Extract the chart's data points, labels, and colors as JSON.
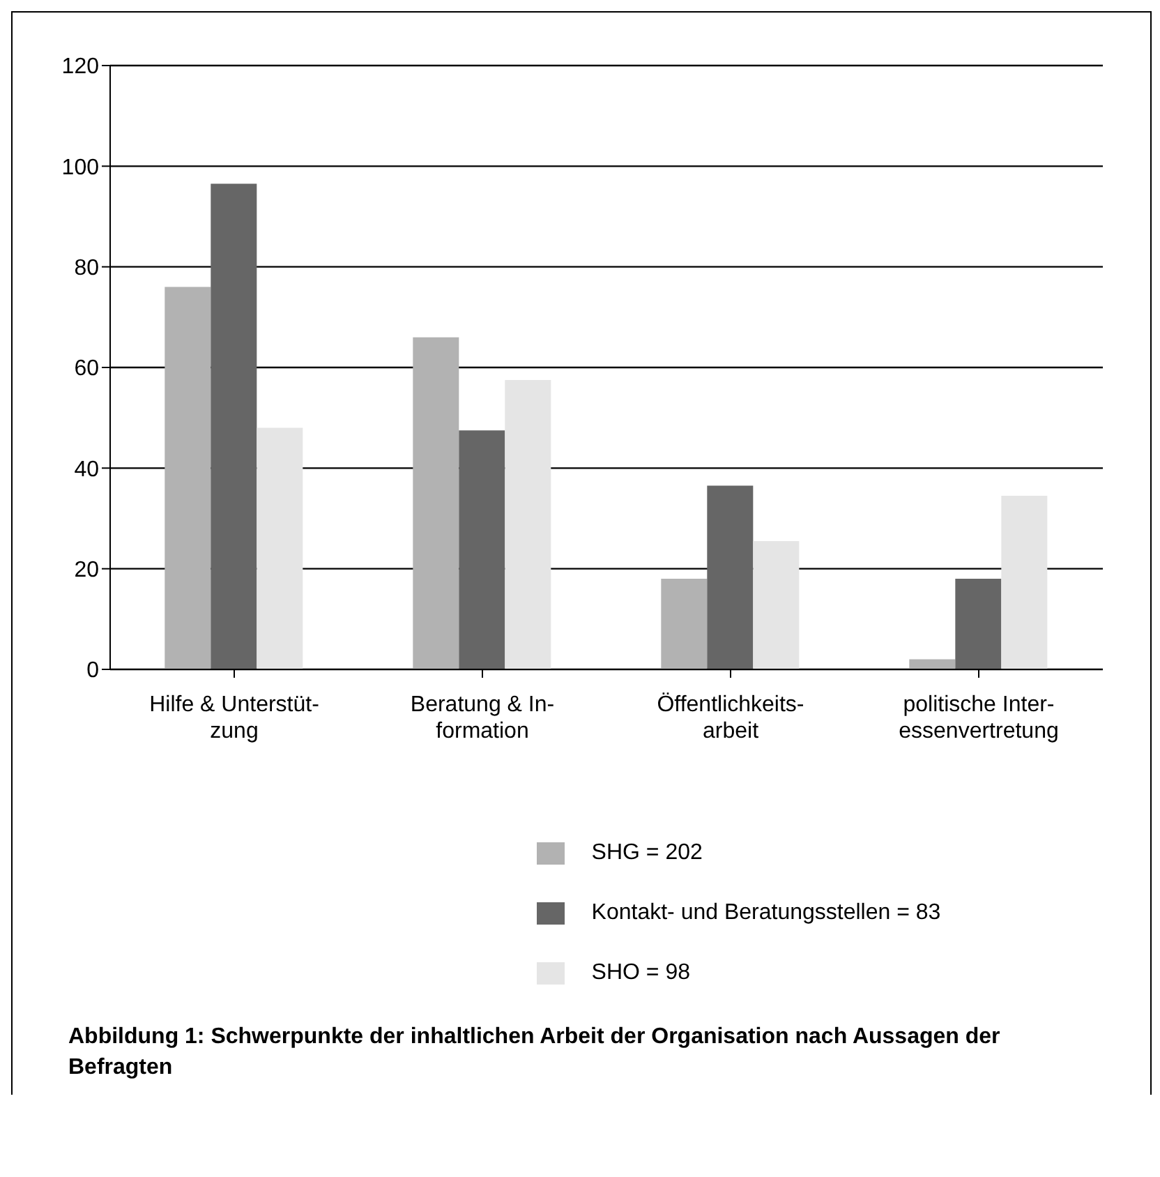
{
  "chart_data": {
    "type": "bar",
    "categories": [
      "Hilfe & Unterstüt-\nzung",
      "Beratung & In-\nformation",
      "Öffentlichkeits-\narbeit",
      "politische Inter-\nessenvertretung"
    ],
    "series": [
      {
        "name": "SHG = 202",
        "color": "#b2b2b2",
        "values": [
          76,
          66,
          18,
          2
        ]
      },
      {
        "name": "Kontakt- und Beratungsstellen = 83",
        "color": "#666666",
        "values": [
          96.5,
          47.5,
          36.5,
          18
        ]
      },
      {
        "name": "SHO = 98",
        "color": "#e5e5e5",
        "values": [
          48,
          57.5,
          25.5,
          34.5
        ]
      }
    ],
    "ylim": [
      0,
      120
    ],
    "yticks": [
      0,
      20,
      40,
      60,
      80,
      100,
      120
    ],
    "grid": "y",
    "legend": "bottom",
    "annotations": [
      "Abbildung 1: Schwerpunkte der inhaltlichen Arbeit der Organisation nach Aussagen der Befragten"
    ]
  }
}
